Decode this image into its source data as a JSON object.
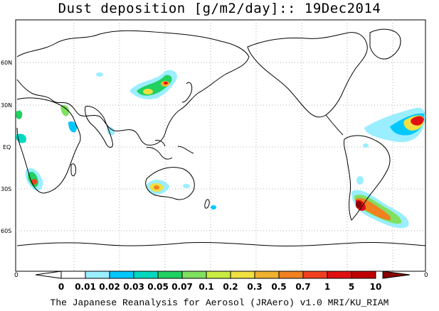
{
  "title": "Dust deposition [g/m2/day]:: 19Dec2014",
  "footer": "The Japanese Reanalysis for Aerosol (JRAero) v1.0 MRI/KU_RIAM",
  "lat_labels": [
    "60N",
    "30N",
    "EQ",
    "30S",
    "60S"
  ],
  "colorbar": {
    "edge_left": "0",
    "edge_right": "0",
    "levels": [
      "0",
      "0.01",
      "0.02",
      "0.03",
      "0.05",
      "0.07",
      "0.1",
      "0.2",
      "0.3",
      "0.5",
      "0.7",
      "1",
      "5",
      "10"
    ],
    "colors": [
      "#ffffff",
      "#9aeeff",
      "#00c8ff",
      "#00d8c0",
      "#20d060",
      "#80e060",
      "#c8ec40",
      "#f0e040",
      "#f0b030",
      "#f08020",
      "#f04020",
      "#e01010",
      "#c00000",
      "#8a0000"
    ]
  },
  "colors": {
    "coast": "#000000",
    "grid": "#b0b0b0",
    "background": "#ffffff"
  }
}
